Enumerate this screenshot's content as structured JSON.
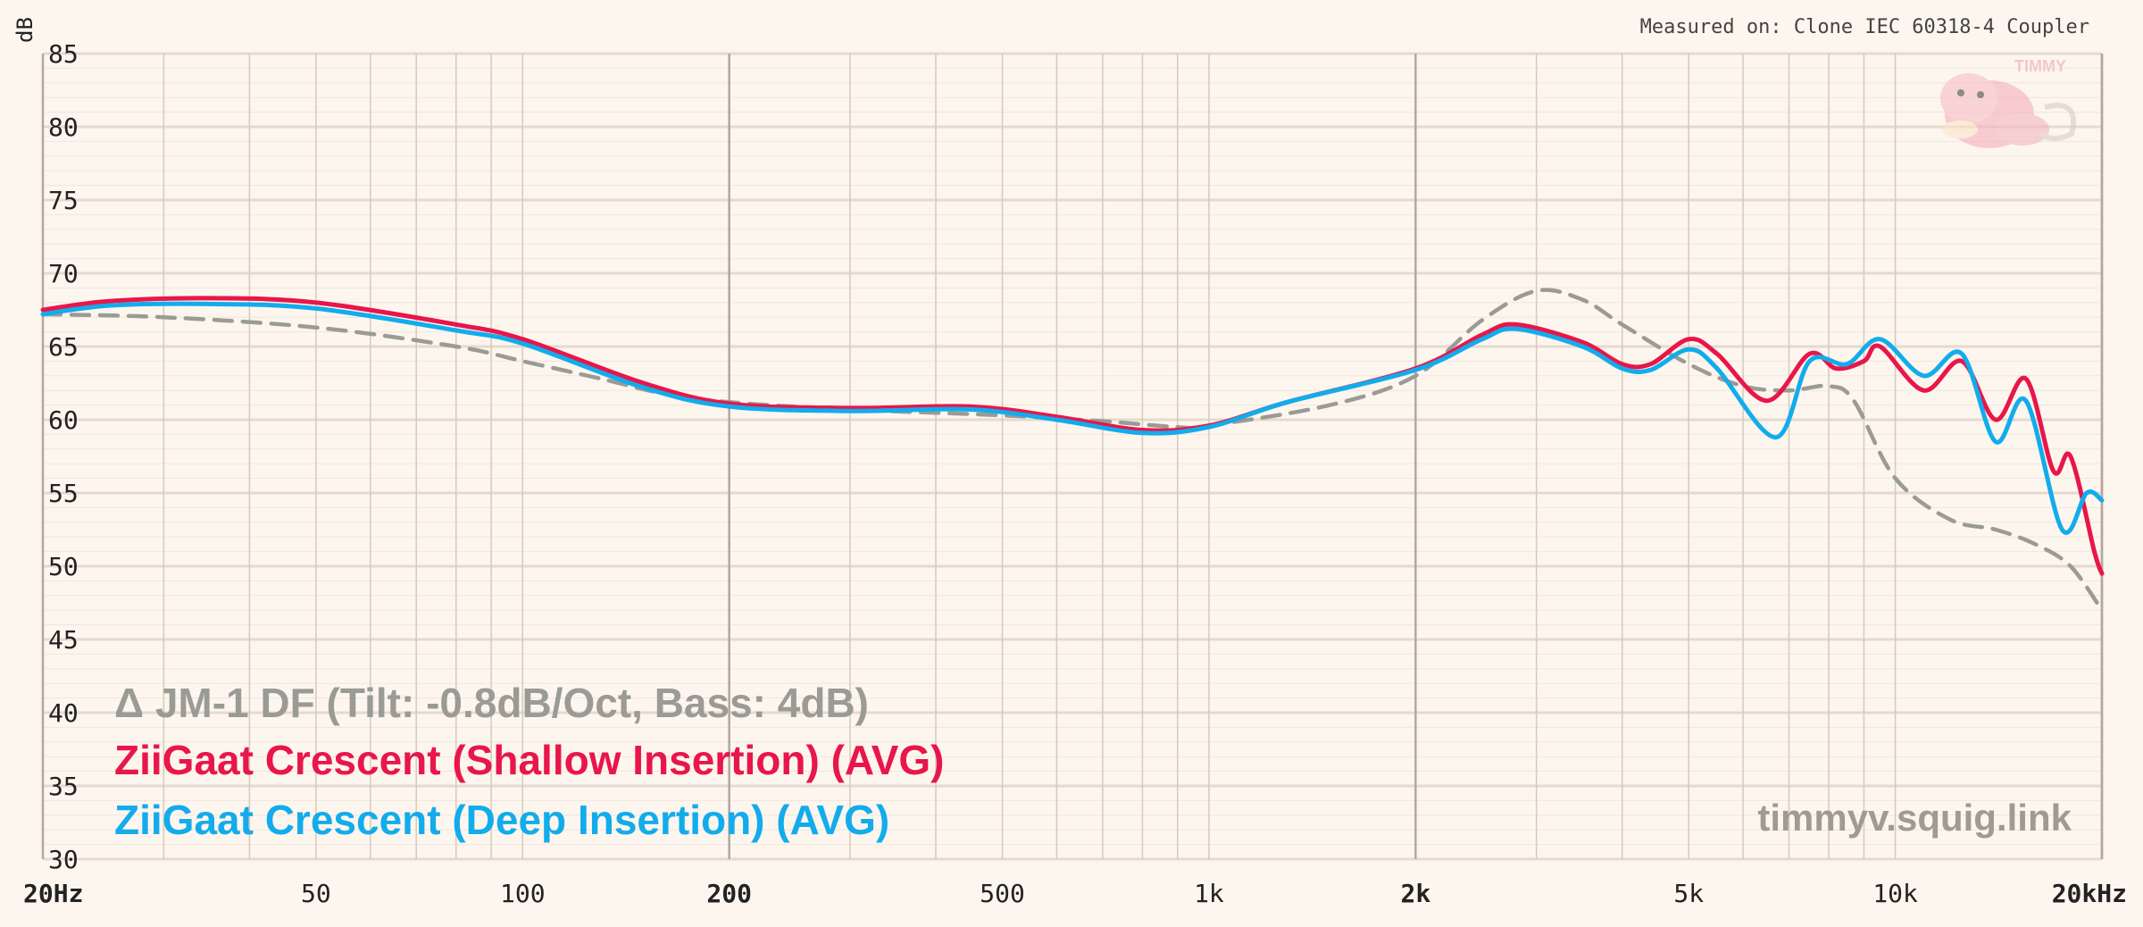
{
  "chart_data": {
    "type": "line",
    "ylabel": "dB",
    "ylim": [
      30,
      85
    ],
    "xlim": [
      20,
      20000
    ],
    "x_scale": "log",
    "grid": true,
    "y_ticks": [
      85,
      80,
      75,
      70,
      65,
      60,
      55,
      50,
      45,
      40,
      35,
      30
    ],
    "x_ticks": [
      {
        "value": 20,
        "label": "20Hz",
        "major": true
      },
      {
        "value": 50,
        "label": "50",
        "major": false
      },
      {
        "value": 100,
        "label": "100",
        "major": false
      },
      {
        "value": 200,
        "label": "200",
        "major": true
      },
      {
        "value": 500,
        "label": "500",
        "major": false
      },
      {
        "value": 1000,
        "label": "1k",
        "major": false
      },
      {
        "value": 2000,
        "label": "2k",
        "major": true
      },
      {
        "value": 5000,
        "label": "5k",
        "major": false
      },
      {
        "value": 10000,
        "label": "10k",
        "major": false
      },
      {
        "value": 20000,
        "label": "20kHz",
        "major": true
      }
    ],
    "series": [
      {
        "name": "Δ JM-1 DF (Tilt: -0.8dB/Oct, Bass: 4dB)",
        "color": "#9b9b95",
        "dashed": true,
        "points": [
          [
            20,
            67.2
          ],
          [
            30,
            67.0
          ],
          [
            50,
            66.3
          ],
          [
            80,
            65.0
          ],
          [
            100,
            64.0
          ],
          [
            130,
            62.8
          ],
          [
            160,
            61.8
          ],
          [
            200,
            61.2
          ],
          [
            300,
            60.7
          ],
          [
            500,
            60.3
          ],
          [
            700,
            59.9
          ],
          [
            900,
            59.5
          ],
          [
            1000,
            59.6
          ],
          [
            1500,
            61.0
          ],
          [
            2000,
            63.0
          ],
          [
            2500,
            66.8
          ],
          [
            3000,
            68.8
          ],
          [
            3500,
            68.2
          ],
          [
            4000,
            66.5
          ],
          [
            5000,
            63.8
          ],
          [
            6000,
            62.3
          ],
          [
            7000,
            62.0
          ],
          [
            8000,
            62.3
          ],
          [
            8700,
            61.3
          ],
          [
            10000,
            56.0
          ],
          [
            12000,
            53.2
          ],
          [
            14000,
            52.5
          ],
          [
            16000,
            51.5
          ],
          [
            18000,
            50.0
          ],
          [
            20000,
            47.0
          ]
        ]
      },
      {
        "name": "ZiiGaat Crescent (Shallow Insertion) (AVG)",
        "color": "#e8164a",
        "dashed": false,
        "points": [
          [
            20,
            67.5
          ],
          [
            25,
            68.1
          ],
          [
            35,
            68.3
          ],
          [
            50,
            68.0
          ],
          [
            80,
            66.5
          ],
          [
            100,
            65.5
          ],
          [
            150,
            62.5
          ],
          [
            200,
            61.1
          ],
          [
            300,
            60.8
          ],
          [
            450,
            60.9
          ],
          [
            600,
            60.2
          ],
          [
            800,
            59.3
          ],
          [
            1000,
            59.6
          ],
          [
            1300,
            61.2
          ],
          [
            2000,
            63.5
          ],
          [
            2500,
            65.8
          ],
          [
            2800,
            66.5
          ],
          [
            3500,
            65.3
          ],
          [
            4000,
            63.8
          ],
          [
            4400,
            63.8
          ],
          [
            5000,
            65.5
          ],
          [
            5500,
            64.5
          ],
          [
            6500,
            61.3
          ],
          [
            7500,
            64.5
          ],
          [
            8200,
            63.5
          ],
          [
            9000,
            64.0
          ],
          [
            9500,
            65.0
          ],
          [
            11000,
            62.0
          ],
          [
            12500,
            64.0
          ],
          [
            14000,
            60.0
          ],
          [
            15500,
            62.8
          ],
          [
            17000,
            56.5
          ],
          [
            18000,
            57.5
          ],
          [
            19500,
            51.0
          ],
          [
            20000,
            49.5
          ]
        ]
      },
      {
        "name": "ZiiGaat Crescent (Deep Insertion) (AVG)",
        "color": "#12acec",
        "dashed": false,
        "points": [
          [
            20,
            67.2
          ],
          [
            25,
            67.8
          ],
          [
            35,
            67.9
          ],
          [
            50,
            67.6
          ],
          [
            80,
            66.1
          ],
          [
            100,
            65.2
          ],
          [
            150,
            62.2
          ],
          [
            200,
            60.9
          ],
          [
            300,
            60.6
          ],
          [
            450,
            60.7
          ],
          [
            600,
            60.0
          ],
          [
            800,
            59.1
          ],
          [
            1000,
            59.5
          ],
          [
            1300,
            61.2
          ],
          [
            2000,
            63.4
          ],
          [
            2500,
            65.5
          ],
          [
            2800,
            66.2
          ],
          [
            3500,
            65.0
          ],
          [
            4000,
            63.5
          ],
          [
            4400,
            63.4
          ],
          [
            5000,
            64.8
          ],
          [
            5500,
            63.5
          ],
          [
            6700,
            58.8
          ],
          [
            7500,
            64.0
          ],
          [
            8500,
            63.8
          ],
          [
            9500,
            65.5
          ],
          [
            11000,
            63.0
          ],
          [
            12500,
            64.5
          ],
          [
            14000,
            58.5
          ],
          [
            15500,
            61.3
          ],
          [
            17500,
            52.5
          ],
          [
            19000,
            55.0
          ],
          [
            20000,
            54.5
          ]
        ]
      }
    ]
  },
  "texts": {
    "measured_on": "Measured on: Clone IEC 60318-4 Coupler",
    "watermark": "timmyv.squig.link",
    "logo_label": "TIMMY"
  },
  "colors": {
    "background": "#fdf6ee",
    "grid_minor": "#e3d8cc",
    "grid_major": "#b3a89d"
  }
}
